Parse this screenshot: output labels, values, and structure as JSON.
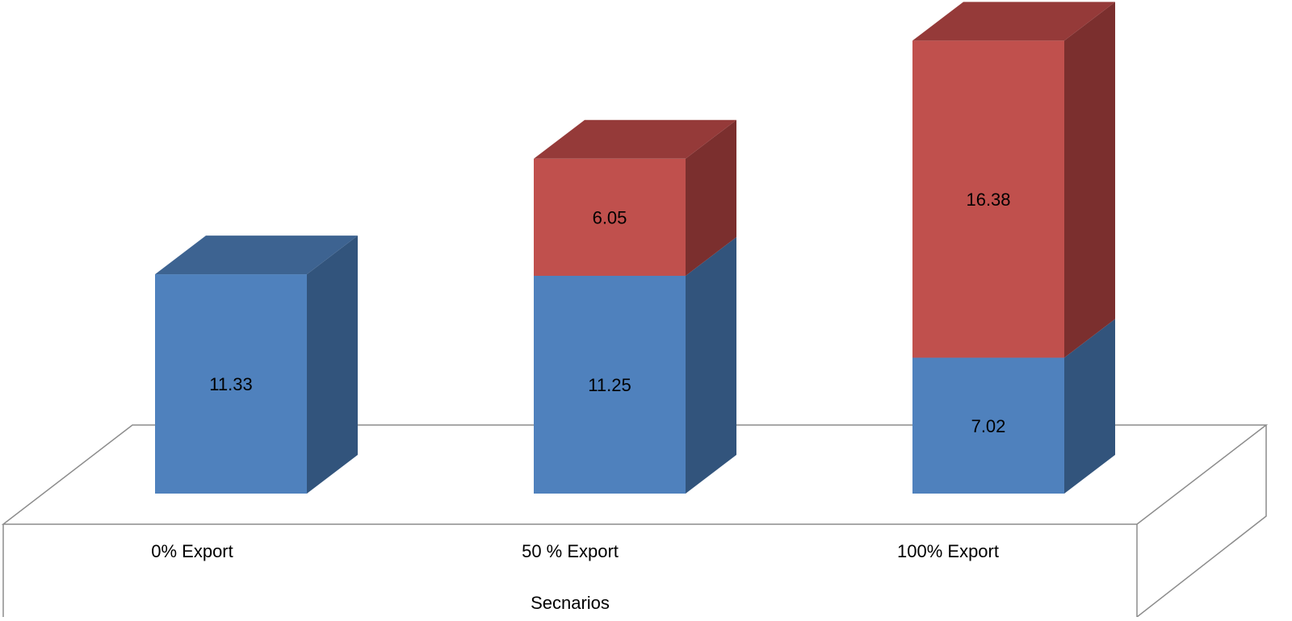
{
  "chart_data": {
    "type": "bar",
    "stacked": true,
    "three_d": true,
    "title": "",
    "xlabel": "Secnarios",
    "ylabel": "",
    "categories": [
      "0% Export",
      "50 % Export",
      "100% Export"
    ],
    "series": [
      {
        "values": [
          11.33,
          11.25,
          7.02
        ],
        "labels": [
          "11.33",
          "11.25",
          "7.02"
        ]
      },
      {
        "values": [
          0,
          6.05,
          16.38
        ],
        "labels": [
          "",
          "6.05",
          "16.38"
        ]
      }
    ],
    "ylim": [
      0,
      25
    ],
    "grid": false,
    "legend": "none"
  },
  "colors": {
    "series_front": [
      "#4f81bd",
      "#c0504d"
    ],
    "series_side": [
      "#32547c",
      "#7b2f2e"
    ],
    "series_top": [
      "#3d6391",
      "#953a39"
    ],
    "floor_stroke": "#8c8c8c"
  }
}
